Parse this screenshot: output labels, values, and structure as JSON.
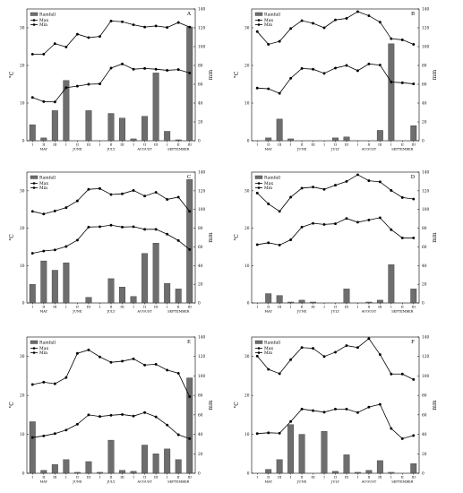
{
  "months": [
    "MAY",
    "JUNE",
    "JULY",
    "AUGUST",
    "SEPTEMBER"
  ],
  "decades": [
    "I",
    "II",
    "III"
  ],
  "y_left_label": "°C",
  "y_right_label": "mm",
  "legend": {
    "rainfall": "Rainfall",
    "max": "Max",
    "min": "Min"
  },
  "chart_data": [
    {
      "type": "bar+line",
      "panel": "A",
      "show_legend": true,
      "left_ylim": [
        0,
        35
      ],
      "right_ylim": [
        0,
        140
      ],
      "left_ticks": [
        0,
        10,
        20,
        30
      ],
      "right_ticks": [
        0,
        20,
        40,
        60,
        80,
        100,
        120,
        140
      ],
      "categories": [
        "I",
        "II",
        "III",
        "I",
        "II",
        "III",
        "I",
        "II",
        "III",
        "I",
        "II",
        "III",
        "I",
        "II",
        "III"
      ],
      "rainfall": [
        17,
        3,
        32,
        64,
        0,
        32,
        0,
        29,
        24,
        2,
        26,
        72,
        10,
        1,
        121
      ],
      "max": [
        23,
        23,
        25.8,
        24.9,
        28.3,
        27.4,
        27.7,
        31.8,
        31.6,
        30.8,
        30.2,
        30.5,
        30.1,
        31.4,
        30.2
      ],
      "min": [
        11.5,
        10.4,
        10.3,
        14.1,
        14.5,
        15,
        15.1,
        19.3,
        20.4,
        19,
        19.2,
        19,
        18.7,
        18.9,
        18
      ]
    },
    {
      "type": "bar+line",
      "panel": "B",
      "show_legend": true,
      "left_ylim": [
        0,
        35
      ],
      "right_ylim": [
        0,
        140
      ],
      "left_ticks": [
        0,
        10,
        20,
        30
      ],
      "right_ticks": [
        0,
        20,
        40,
        60,
        80,
        100,
        120,
        140
      ],
      "categories": [
        "I",
        "II",
        "III",
        "I",
        "II",
        "III",
        "I",
        "II",
        "III",
        "I",
        "II",
        "III",
        "I",
        "II",
        "III"
      ],
      "rainfall": [
        0,
        3,
        23,
        2,
        0,
        0,
        0,
        3,
        4,
        0,
        0,
        11,
        103,
        0,
        16
      ],
      "max": [
        29,
        25.6,
        26.4,
        29.8,
        31.9,
        31.2,
        30,
        32.1,
        32.5,
        34.3,
        33.2,
        31.5,
        27.1,
        26.8,
        25.6
      ],
      "min": [
        14,
        13.8,
        12.6,
        16.6,
        19.2,
        19,
        17.9,
        19.3,
        20,
        18.6,
        20.4,
        20.1,
        15.6,
        15.4,
        15.1
      ]
    },
    {
      "type": "bar+line",
      "panel": "C",
      "show_legend": true,
      "left_ylim": [
        0,
        35
      ],
      "right_ylim": [
        0,
        140
      ],
      "left_ticks": [
        0,
        10,
        20,
        30
      ],
      "right_ticks": [
        0,
        20,
        40,
        60,
        80,
        100,
        120,
        140
      ],
      "categories": [
        "I",
        "II",
        "III",
        "I",
        "II",
        "III",
        "I",
        "II",
        "III",
        "I",
        "II",
        "III",
        "I",
        "II",
        "III"
      ],
      "rainfall": [
        20,
        45,
        35,
        43,
        0,
        6,
        0,
        26,
        17,
        7,
        53,
        64,
        21,
        15,
        132
      ],
      "max": [
        24.5,
        23.8,
        24.6,
        25.5,
        27.3,
        30.4,
        30.6,
        29,
        29.2,
        30.1,
        28.6,
        29.6,
        27.7,
        28.3,
        24.5
      ],
      "min": [
        13.3,
        13.9,
        14.2,
        15.1,
        16.8,
        20.3,
        20.4,
        20.8,
        20.3,
        20.4,
        19.7,
        19.7,
        18.4,
        16.7,
        14.3
      ]
    },
    {
      "type": "bar+line",
      "panel": "D",
      "show_legend": true,
      "left_ylim": [
        0,
        35
      ],
      "right_ylim": [
        0,
        140
      ],
      "left_ticks": [
        0,
        10,
        20,
        30
      ],
      "right_ticks": [
        0,
        20,
        40,
        60,
        80,
        100,
        120,
        140
      ],
      "categories": [
        "I",
        "II",
        "III",
        "I",
        "II",
        "III",
        "I",
        "II",
        "III",
        "I",
        "II",
        "III",
        "I",
        "II",
        "III"
      ],
      "rainfall": [
        0,
        10,
        8,
        1,
        3,
        1,
        0,
        0,
        15,
        0,
        1,
        3,
        41,
        0,
        15
      ],
      "max": [
        29.4,
        26.5,
        24.5,
        28.3,
        30.7,
        31,
        30.4,
        31.5,
        32.5,
        34.3,
        32.7,
        32.4,
        30.1,
        28.2,
        27.8
      ],
      "min": [
        15.6,
        16.1,
        15.5,
        16.9,
        20.3,
        21.3,
        21,
        21.2,
        22.6,
        21.6,
        22.2,
        22.8,
        19.6,
        17.4,
        17.4
      ]
    },
    {
      "type": "bar+line",
      "panel": "E",
      "show_legend": true,
      "left_ylim": [
        0,
        35
      ],
      "right_ylim": [
        0,
        140
      ],
      "left_ticks": [
        0,
        10,
        20,
        30
      ],
      "right_ticks": [
        0,
        20,
        40,
        60,
        80,
        100,
        120,
        140
      ],
      "categories": [
        "I",
        "II",
        "III",
        "I",
        "II",
        "III",
        "I",
        "II",
        "III",
        "I",
        "II",
        "III",
        "I",
        "II",
        "III"
      ],
      "rainfall": [
        53,
        3,
        9,
        14,
        1,
        12,
        1,
        34,
        3,
        2,
        29,
        20,
        25,
        14,
        98
      ],
      "max": [
        22.8,
        23.4,
        23,
        24.6,
        30.8,
        31.7,
        29.9,
        28.5,
        28.8,
        29.4,
        27.8,
        28,
        26.5,
        25.7,
        19.7
      ],
      "min": [
        9.2,
        9.6,
        10.2,
        11.1,
        12.6,
        15,
        14.6,
        14.9,
        15.1,
        14.7,
        15.6,
        14.5,
        12.4,
        9.9,
        8.9
      ]
    },
    {
      "type": "bar+line",
      "panel": "F",
      "show_legend": true,
      "left_ylim": [
        0,
        35
      ],
      "right_ylim": [
        0,
        140
      ],
      "left_ticks": [
        0,
        10,
        20,
        30
      ],
      "right_ticks": [
        0,
        20,
        40,
        60,
        80,
        100,
        120,
        140
      ],
      "categories": [
        "I",
        "II",
        "III",
        "I",
        "II",
        "III",
        "I",
        "II",
        "III",
        "I",
        "II",
        "III",
        "I",
        "II",
        "III"
      ],
      "rainfall": [
        0,
        4,
        14,
        50,
        40,
        0,
        43,
        2,
        19,
        1,
        3,
        13,
        1,
        0,
        10
      ],
      "max": [
        30.1,
        26.7,
        25.6,
        29.2,
        32.3,
        32.1,
        30,
        31.1,
        32.8,
        32.3,
        34.6,
        30.5,
        25.5,
        25.5,
        24.1
      ],
      "min": [
        10.2,
        10.4,
        10.3,
        13.3,
        16.5,
        16.1,
        15.7,
        16.5,
        16.5,
        15.6,
        17,
        17.7,
        11.5,
        8.9,
        9.7
      ]
    }
  ]
}
